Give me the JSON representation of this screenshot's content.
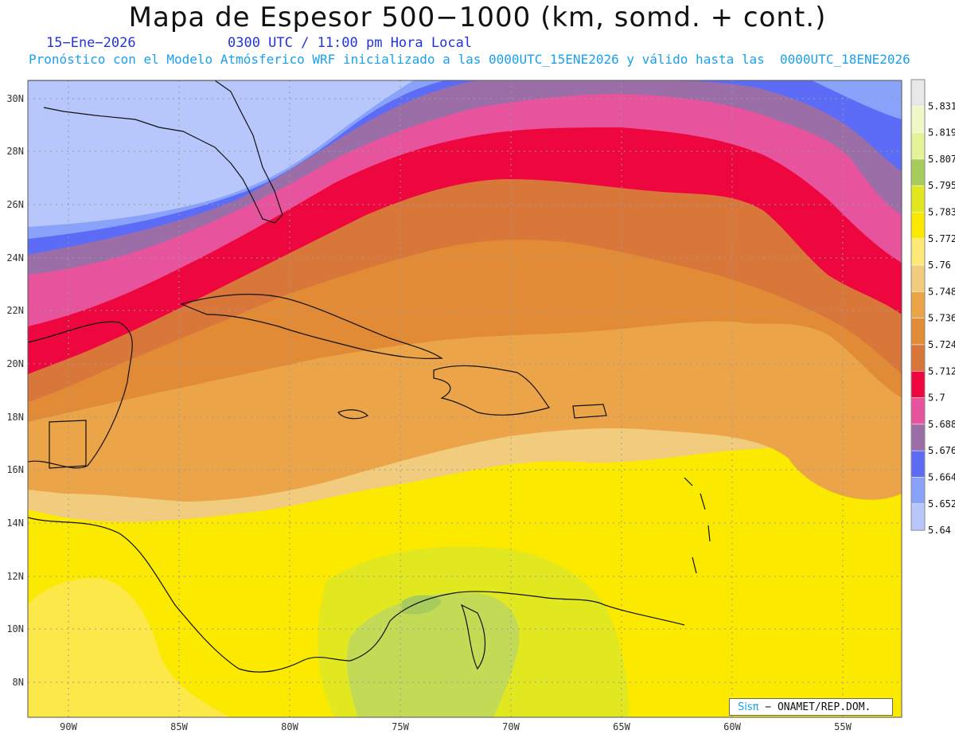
{
  "title": "Mapa de Espesor 500−1000 (km, somd. + cont.)",
  "date": "15−Ene−2026",
  "time": "0300 UTC / 11:00 pm Hora Local",
  "description": "Pronóstico con el Modelo Atmósferico WRF inicializado a las 0000UTC_15ENE2026 y válido hasta las  0000UTC_18ENE2026",
  "credit": {
    "logo": "Sisπ",
    "text": " − ONAMET/REP.DOM."
  },
  "lon_labels": [
    "90W",
    "85W",
    "80W",
    "75W",
    "70W",
    "65W",
    "60W",
    "55W"
  ],
  "lat_labels": [
    "30N",
    "28N",
    "26N",
    "24N",
    "22N",
    "20N",
    "18N",
    "16N",
    "14N",
    "12N",
    "10N",
    "8N"
  ],
  "colorbar": {
    "labels": [
      "5.831",
      "5.819",
      "5.807",
      "5.795",
      "5.783",
      "5.772",
      "5.76",
      "5.748",
      "5.736",
      "5.724",
      "5.712",
      "5.7",
      "5.688",
      "5.676",
      "5.664",
      "5.652",
      "5.64"
    ],
    "colors_top_to_bottom": [
      "#e8e8e8",
      "#f2f7c8",
      "#e4f397",
      "#a8cc5c",
      "#e1e820",
      "#fbe900",
      "#fde878",
      "#f1cc7e",
      "#eca448",
      "#e18b36",
      "#d9773a",
      "#ee073f",
      "#e7539d",
      "#9b6ea8",
      "#5c6cf7",
      "#8aa3fa",
      "#b7c6fb"
    ]
  }
}
